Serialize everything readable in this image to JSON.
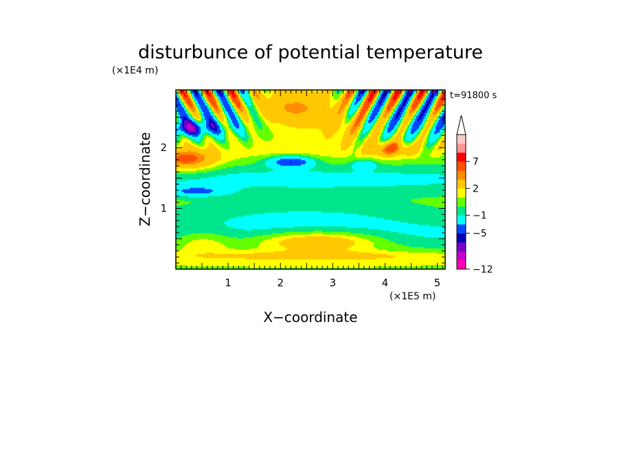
{
  "chart_data": {
    "type": "heatmap",
    "title": "disturbunce of potential temperature",
    "xlabel": "X−coordinate",
    "ylabel": "Z−coordinate",
    "x_unit": "(×1E5 m)",
    "y_unit": "(×1E4 m)",
    "time_label": "t=91800 s",
    "xlim": [
      0,
      5.15
    ],
    "ylim": [
      0,
      2.95
    ],
    "x_ticks": [
      {
        "value": 1,
        "label": "1"
      },
      {
        "value": 2,
        "label": "2"
      },
      {
        "value": 3,
        "label": "3"
      },
      {
        "value": 4,
        "label": "4"
      },
      {
        "value": 5,
        "label": "5"
      }
    ],
    "y_ticks": [
      {
        "value": 1,
        "label": "1"
      },
      {
        "value": 2,
        "label": "2"
      }
    ],
    "colorbar": {
      "levels": [
        -12,
        -10,
        -8,
        -6,
        -5,
        -3,
        -1,
        0,
        1,
        2,
        4,
        5,
        7,
        9,
        11
      ],
      "colors": [
        "#ff00b4",
        "#c800c8",
        "#7800c8",
        "#0000b4",
        "#0048ff",
        "#00ffff",
        "#00e68c",
        "#64ff00",
        "#ffff00",
        "#ffc800",
        "#ff8c00",
        "#ff5000",
        "#ff0000",
        "#ff9696",
        "#ffc8c8"
      ],
      "extend": "max",
      "tick_labels": [
        {
          "value": 7,
          "label": "7"
        },
        {
          "value": 2,
          "label": "2"
        },
        {
          "value": -1,
          "label": "−1"
        },
        {
          "value": -5,
          "label": "−5"
        },
        {
          "value": -12,
          "label": "−12"
        }
      ]
    },
    "features": [
      {
        "x": 2.7,
        "z": 0.45,
        "value": 4
      },
      {
        "x": 2.5,
        "z": 0.95,
        "value": -1
      },
      {
        "x": 2.2,
        "z": 1.75,
        "value": -6
      },
      {
        "x": 2.3,
        "z": 2.6,
        "value": 7
      },
      {
        "x": 0.2,
        "z": 1.8,
        "value": 5
      },
      {
        "x": 0.2,
        "z": 2.3,
        "value": -6
      },
      {
        "x": 4.6,
        "z": 2.5,
        "value": -6
      },
      {
        "x": 4.1,
        "z": 2.0,
        "value": 5
      }
    ]
  }
}
